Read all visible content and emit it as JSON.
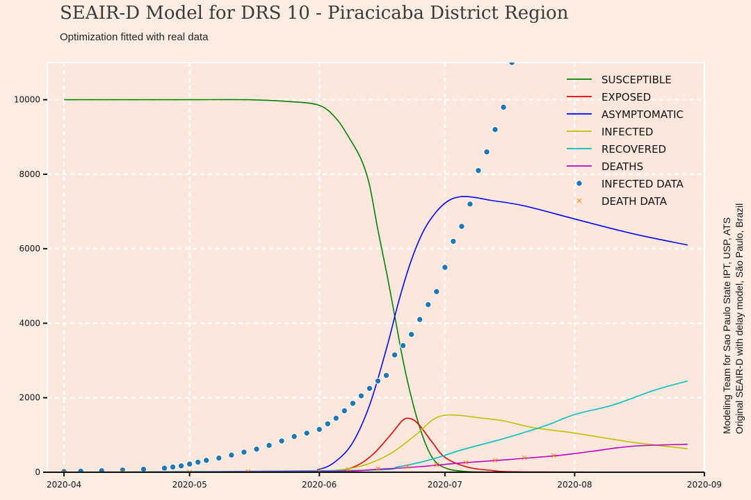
{
  "title": "SEAIR-D Model for DRS 10 - Piracicaba District Region",
  "subtitle": "Optimization fitted with real data",
  "side_note": [
    "Modeling Team for Sao Paulo State IPT, USP, ATS",
    "Original SEAIR-D with delay model, São Paulo, Brazil"
  ],
  "colors": {
    "background": "#fcede3",
    "plot_background": "#fbe7dc",
    "grid": "#ffffff",
    "susceptible": "#008000",
    "exposed": "#e00000",
    "asymptomatic": "#0000ff",
    "infected": "#bfbf00",
    "recovered": "#00bfbf",
    "deaths": "#bf00bf",
    "infected_data": "#1f77b4",
    "death_data": "#ff7f0e"
  },
  "chart_data": {
    "type": "line",
    "title": "SEAIR-D Model for DRS 10 - Piracicaba District Region",
    "subtitle": "Optimization fitted with real data",
    "xlabel": "",
    "ylabel": "",
    "x_ticks": [
      "2020-04",
      "2020-05",
      "2020-06",
      "2020-07",
      "2020-08",
      "2020-09"
    ],
    "y_ticks": [
      0,
      2000,
      4000,
      6000,
      8000,
      10000
    ],
    "xlim": [
      "2020-03-28",
      "2020-09-01"
    ],
    "ylim": [
      0,
      11000
    ],
    "grid": true,
    "legend_position": "top-right",
    "series": [
      {
        "name": "Susceptible",
        "kind": "line",
        "color_key": "susceptible",
        "x": [
          "2020-04-01",
          "2020-04-15",
          "2020-05-01",
          "2020-05-15",
          "2020-05-25",
          "2020-06-01",
          "2020-06-05",
          "2020-06-08",
          "2020-06-11",
          "2020-06-13",
          "2020-06-15",
          "2020-06-17",
          "2020-06-19",
          "2020-06-21",
          "2020-06-23",
          "2020-06-25",
          "2020-06-27",
          "2020-06-29",
          "2020-07-02",
          "2020-07-06",
          "2020-07-10",
          "2020-07-15",
          "2020-08-28"
        ],
        "y": [
          10000,
          10000,
          10000,
          10000,
          9950,
          9850,
          9500,
          9000,
          8400,
          7700,
          6500,
          5400,
          4200,
          3000,
          2000,
          1200,
          600,
          250,
          80,
          20,
          8,
          3,
          0
        ]
      },
      {
        "name": "Exposed",
        "kind": "line",
        "color_key": "exposed",
        "x": [
          "2020-04-01",
          "2020-05-25",
          "2020-06-05",
          "2020-06-10",
          "2020-06-14",
          "2020-06-18",
          "2020-06-21",
          "2020-06-23",
          "2020-06-25",
          "2020-06-28",
          "2020-07-01",
          "2020-07-06",
          "2020-07-12",
          "2020-07-20",
          "2020-08-28"
        ],
        "y": [
          0,
          0,
          40,
          180,
          500,
          1000,
          1400,
          1430,
          1250,
          800,
          400,
          150,
          50,
          10,
          0
        ]
      },
      {
        "name": "Asymptomatic",
        "kind": "line",
        "color_key": "asymptomatic",
        "x": [
          "2020-04-01",
          "2020-05-25",
          "2020-06-01",
          "2020-06-05",
          "2020-06-09",
          "2020-06-13",
          "2020-06-17",
          "2020-06-20",
          "2020-06-23",
          "2020-06-26",
          "2020-06-29",
          "2020-07-02",
          "2020-07-05",
          "2020-07-08",
          "2020-07-12",
          "2020-07-20",
          "2020-08-01",
          "2020-08-15",
          "2020-08-28"
        ],
        "y": [
          0,
          0,
          80,
          300,
          800,
          1800,
          3300,
          4600,
          5700,
          6500,
          7000,
          7300,
          7400,
          7380,
          7300,
          7150,
          6800,
          6400,
          6100
        ]
      },
      {
        "name": "Infected",
        "kind": "line",
        "color_key": "infected",
        "x": [
          "2020-04-01",
          "2020-05-25",
          "2020-06-05",
          "2020-06-12",
          "2020-06-18",
          "2020-06-24",
          "2020-06-28",
          "2020-07-01",
          "2020-07-05",
          "2020-07-10",
          "2020-07-15",
          "2020-07-22",
          "2020-08-01",
          "2020-08-15",
          "2020-08-28"
        ],
        "y": [
          0,
          0,
          50,
          200,
          500,
          1000,
          1400,
          1530,
          1520,
          1450,
          1380,
          1200,
          1050,
          800,
          630
        ]
      },
      {
        "name": "Recovered",
        "kind": "line",
        "color_key": "recovered",
        "x": [
          "2020-04-01",
          "2020-06-10",
          "2020-06-20",
          "2020-06-28",
          "2020-07-05",
          "2020-07-15",
          "2020-07-25",
          "2020-08-01",
          "2020-08-10",
          "2020-08-20",
          "2020-08-28"
        ],
        "y": [
          0,
          50,
          150,
          350,
          600,
          900,
          1250,
          1550,
          1800,
          2200,
          2450
        ]
      },
      {
        "name": "Deaths",
        "kind": "line",
        "color_key": "deaths",
        "x": [
          "2020-04-01",
          "2020-06-01",
          "2020-06-15",
          "2020-06-25",
          "2020-07-05",
          "2020-07-15",
          "2020-07-28",
          "2020-08-05",
          "2020-08-15",
          "2020-08-28"
        ],
        "y": [
          0,
          20,
          80,
          150,
          250,
          330,
          450,
          560,
          700,
          750
        ]
      },
      {
        "name": "Infected Data",
        "kind": "scatter",
        "color_key": "infected_data",
        "x": [
          "2020-04-01",
          "2020-04-05",
          "2020-04-10",
          "2020-04-15",
          "2020-04-20",
          "2020-04-25",
          "2020-04-27",
          "2020-04-29",
          "2020-05-01",
          "2020-05-03",
          "2020-05-05",
          "2020-05-08",
          "2020-05-11",
          "2020-05-14",
          "2020-05-17",
          "2020-05-20",
          "2020-05-23",
          "2020-05-26",
          "2020-05-29",
          "2020-06-01",
          "2020-06-03",
          "2020-06-05",
          "2020-06-07",
          "2020-06-09",
          "2020-06-11",
          "2020-06-13",
          "2020-06-15",
          "2020-06-17",
          "2020-06-19",
          "2020-06-21",
          "2020-06-23",
          "2020-06-25",
          "2020-06-27",
          "2020-06-29",
          "2020-07-01",
          "2020-07-03",
          "2020-07-05",
          "2020-07-07",
          "2020-07-09",
          "2020-07-11",
          "2020-07-13",
          "2020-07-15",
          "2020-07-17"
        ],
        "y": [
          20,
          30,
          40,
          60,
          80,
          110,
          140,
          170,
          220,
          270,
          320,
          380,
          460,
          540,
          620,
          720,
          840,
          960,
          1050,
          1150,
          1300,
          1450,
          1650,
          1850,
          2050,
          2250,
          2450,
          2600,
          3150,
          3400,
          3700,
          4100,
          4500,
          4850,
          5500,
          6200,
          6600,
          7200,
          8100,
          8600,
          9200,
          9800,
          11000
        ]
      },
      {
        "name": "Death Data",
        "kind": "scatter",
        "color_key": "death_data",
        "x": [
          "2020-04-01",
          "2020-04-15",
          "2020-05-01",
          "2020-05-15",
          "2020-06-01",
          "2020-06-08",
          "2020-06-15",
          "2020-06-22",
          "2020-06-29",
          "2020-07-06",
          "2020-07-13",
          "2020-07-20",
          "2020-07-27"
        ],
        "y": [
          0,
          5,
          10,
          20,
          40,
          70,
          100,
          150,
          200,
          260,
          320,
          390,
          450
        ]
      }
    ]
  }
}
